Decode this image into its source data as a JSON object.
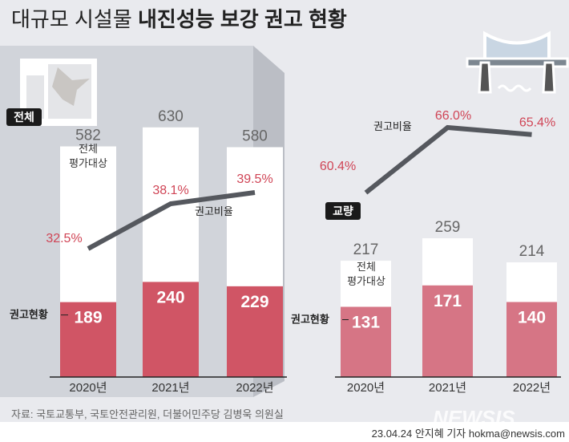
{
  "title_light": "대규모 시설물",
  "title_bold": "내진성능 보강 권고 현황",
  "source": "자료: 국토교통부, 국토안전관리원, 더불어민주당 김병욱 의원실",
  "credit": "23.04.24 안지혜 기자 hokma@newsis.com",
  "logo": "NEWSIS",
  "colors": {
    "left_bar": "#d05565",
    "right_bar": "#d67585",
    "line": "#55585e",
    "pct": "#d04556"
  },
  "chart_data": [
    {
      "type": "bar",
      "badge": "전체",
      "categories": [
        "2020년",
        "2021년",
        "2022년"
      ],
      "series": [
        {
          "name": "전체 평가대상",
          "values": [
            582,
            630,
            580
          ]
        },
        {
          "name": "권고현황",
          "values": [
            189,
            240,
            229
          ]
        }
      ],
      "line": {
        "name": "권고비율",
        "values": [
          32.5,
          38.1,
          39.5
        ],
        "labels": [
          "32.5%",
          "38.1%",
          "39.5%"
        ]
      },
      "total_label": "전체\n평가대상",
      "total_label_lines": [
        "전체",
        "평가대상"
      ],
      "rec_label": "권고현황",
      "ratio_label": "권고비율"
    },
    {
      "type": "bar",
      "badge": "교량",
      "categories": [
        "2020년",
        "2021년",
        "2022년"
      ],
      "series": [
        {
          "name": "전체 평가대상",
          "values": [
            217,
            259,
            214
          ]
        },
        {
          "name": "권고현황",
          "values": [
            131,
            171,
            140
          ]
        }
      ],
      "line": {
        "name": "권고비율",
        "values": [
          60.4,
          66.0,
          65.4
        ],
        "labels": [
          "60.4%",
          "66.0%",
          "65.4%"
        ]
      },
      "total_label_lines": [
        "전체",
        "평가대상"
      ],
      "rec_label": "권고현황",
      "ratio_label": "권고비율"
    }
  ]
}
